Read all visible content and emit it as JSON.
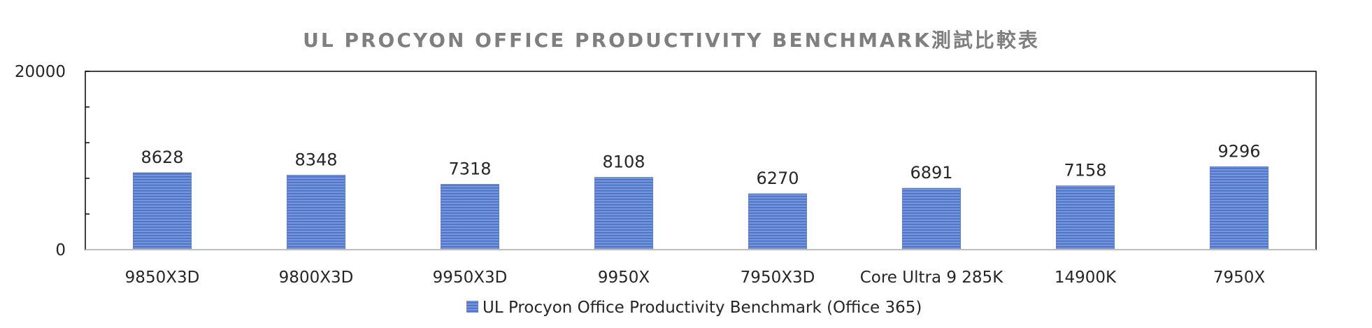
{
  "chart_data": {
    "type": "bar",
    "title": "UL PROCYON OFFICE PRODUCTIVITY BENCHMARK測試比較表",
    "xlabel": "",
    "ylabel": "",
    "categories": [
      "9850X3D",
      "9800X3D",
      "9950X3D",
      "9950X",
      "7950X3D",
      "Core Ultra 9 285K",
      "14900K",
      "7950X"
    ],
    "series": [
      {
        "name": "UL Procyon Office Productivity Benchmark (Office 365)",
        "values": [
          8628,
          8348,
          7318,
          8108,
          6270,
          6891,
          7158,
          9296
        ]
      }
    ],
    "ylim": [
      0,
      20000
    ],
    "y_tick_labels": [
      "0",
      "20000"
    ],
    "grid": false,
    "legend_position": "bottom",
    "colors": {
      "bar_fill": "#6f8fd6",
      "bar_stripe": "#4a6fc0",
      "axis": "#000000",
      "title": "#7f7f7f",
      "text": "#262626"
    }
  }
}
